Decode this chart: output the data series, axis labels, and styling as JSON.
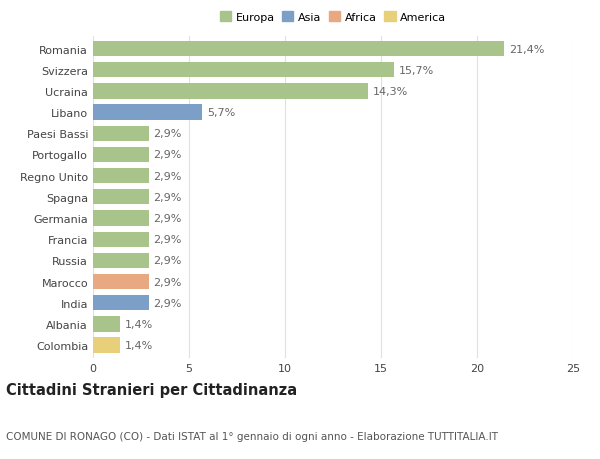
{
  "categories": [
    "Romania",
    "Svizzera",
    "Ucraina",
    "Libano",
    "Paesi Bassi",
    "Portogallo",
    "Regno Unito",
    "Spagna",
    "Germania",
    "Francia",
    "Russia",
    "Marocco",
    "India",
    "Albania",
    "Colombia"
  ],
  "values": [
    21.4,
    15.7,
    14.3,
    5.7,
    2.9,
    2.9,
    2.9,
    2.9,
    2.9,
    2.9,
    2.9,
    2.9,
    2.9,
    1.4,
    1.4
  ],
  "labels": [
    "21,4%",
    "15,7%",
    "14,3%",
    "5,7%",
    "2,9%",
    "2,9%",
    "2,9%",
    "2,9%",
    "2,9%",
    "2,9%",
    "2,9%",
    "2,9%",
    "2,9%",
    "1,4%",
    "1,4%"
  ],
  "continents": [
    "Europa",
    "Europa",
    "Europa",
    "Asia",
    "Europa",
    "Europa",
    "Europa",
    "Europa",
    "Europa",
    "Europa",
    "Europa",
    "Africa",
    "Asia",
    "Europa",
    "America"
  ],
  "continent_colors": {
    "Europa": "#a8c48a",
    "Asia": "#7b9fc7",
    "Africa": "#e8a882",
    "America": "#e8d07a"
  },
  "legend_entries": [
    "Europa",
    "Asia",
    "Africa",
    "America"
  ],
  "legend_colors": [
    "#a8c48a",
    "#7b9fc7",
    "#e8a882",
    "#e8d07a"
  ],
  "xlim": [
    0,
    25
  ],
  "xticks": [
    0,
    5,
    10,
    15,
    20,
    25
  ],
  "title": "Cittadini Stranieri per Cittadinanza",
  "subtitle": "COMUNE DI RONAGO (CO) - Dati ISTAT al 1° gennaio di ogni anno - Elaborazione TUTTITALIA.IT",
  "background_color": "#ffffff",
  "grid_color": "#e0e0e0",
  "bar_height": 0.72,
  "label_fontsize": 8.0,
  "tick_fontsize": 8.0,
  "title_fontsize": 10.5,
  "subtitle_fontsize": 7.5
}
